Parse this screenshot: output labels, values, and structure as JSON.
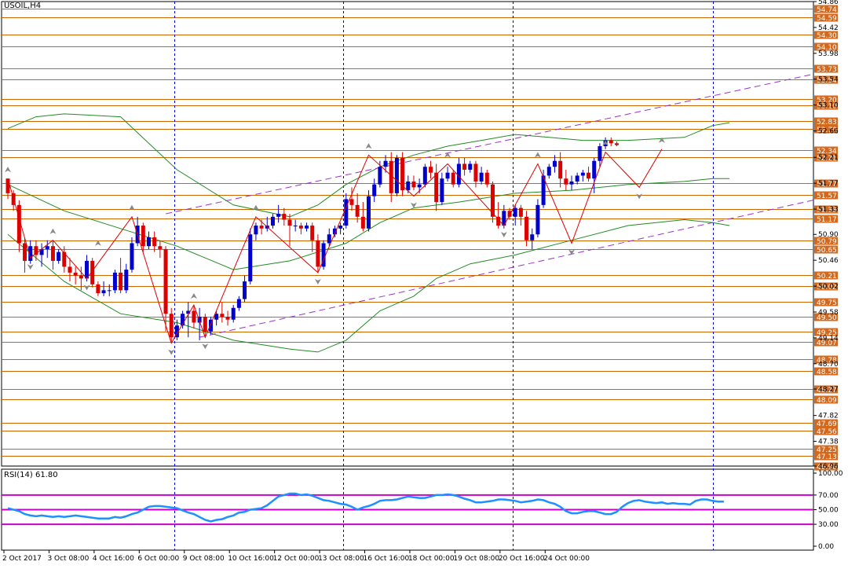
{
  "symbol_label": "USOIL,H4",
  "rsi_label": "RSI(14) 61.80",
  "colors": {
    "background": "#ffffff",
    "grid_v": "#0000cc",
    "level_line": "#cc6600",
    "level_label_bg": "#d2691e",
    "bull_candle": "#0000cc",
    "bear_candle": "#dd0000",
    "zigzag": "#dd0000",
    "bands": "#228b22",
    "channel": "#9933cc",
    "rsi_line": "#1e90ff",
    "rsi_levels": "#cc00cc",
    "arrow": "#888888"
  },
  "chart_data": [
    {
      "type": "candlestick",
      "name": "price",
      "ylim": [
        46.96,
        54.86
      ],
      "y_ticks": [
        "54.86",
        "54.42",
        "53.98",
        "53.54",
        "53.10",
        "52.66",
        "52.21",
        "51.77",
        "51.33",
        "50.90",
        "50.46",
        "50.02",
        "49.58",
        "49.14",
        "48.70",
        "48.27",
        "47.82",
        "47.38",
        "46.96"
      ],
      "levels": [
        "54.74",
        "54.59",
        "54.30",
        "54.10",
        "53.73",
        "53.54",
        "53.20",
        "53.10",
        "52.83",
        "52.70",
        "52.34",
        "52.21",
        "51.77",
        "51.57",
        "51.33",
        "51.17",
        "50.79",
        "50.65",
        "50.21",
        "50.02",
        "49.75",
        "49.50",
        "49.25",
        "49.07",
        "48.78",
        "48.58",
        "48.27",
        "48.09",
        "47.69",
        "47.56",
        "47.25",
        "47.13",
        "46.96"
      ],
      "x_labels": [
        "2 Oct 2017",
        "3 Oct 08:00",
        "4 Oct 16:00",
        "6 Oct 00:00",
        "9 Oct 08:00",
        "10 Oct 16:00",
        "12 Oct 00:00",
        "13 Oct 08:00",
        "16 Oct 16:00",
        "18 Oct 00:00",
        "19 Oct 08:00",
        "20 Oct 16:00",
        "24 Oct 00:00"
      ],
      "x_label_index": [
        0,
        8,
        16,
        24,
        32,
        40,
        48,
        56,
        64,
        72,
        80,
        88,
        96
      ],
      "v_grid_index": [
        29.5,
        59.5,
        89.5,
        125
      ],
      "ohlc": [
        [
          51.85,
          51.85,
          51.5,
          51.6
        ],
        [
          51.6,
          51.65,
          51.3,
          51.4
        ],
        [
          51.4,
          51.48,
          50.6,
          50.75
        ],
        [
          50.75,
          50.85,
          50.25,
          50.45
        ],
        [
          50.45,
          50.8,
          50.4,
          50.7
        ],
        [
          50.7,
          50.8,
          50.45,
          50.55
        ],
        [
          50.55,
          50.75,
          50.35,
          50.65
        ],
        [
          50.65,
          50.8,
          50.5,
          50.7
        ],
        [
          50.7,
          50.8,
          50.3,
          50.45
        ],
        [
          50.45,
          50.65,
          50.4,
          50.6
        ],
        [
          50.6,
          50.7,
          50.25,
          50.35
        ],
        [
          50.35,
          50.5,
          50.1,
          50.25
        ],
        [
          50.25,
          50.35,
          50.05,
          50.2
        ],
        [
          50.2,
          50.35,
          49.95,
          50.15
        ],
        [
          50.15,
          50.55,
          50.1,
          50.45
        ],
        [
          50.45,
          50.5,
          50.0,
          50.05
        ],
        [
          50.05,
          50.1,
          49.85,
          49.9
        ],
        [
          49.9,
          50.1,
          49.85,
          49.95
        ],
        [
          49.95,
          50.05,
          49.85,
          49.95
        ],
        [
          49.95,
          50.3,
          49.9,
          50.25
        ],
        [
          50.25,
          50.5,
          49.9,
          49.95
        ],
        [
          49.95,
          50.4,
          49.9,
          50.3
        ],
        [
          50.3,
          50.85,
          50.25,
          50.75
        ],
        [
          50.75,
          51.2,
          50.7,
          51.05
        ],
        [
          51.05,
          51.1,
          50.6,
          50.7
        ],
        [
          50.7,
          50.95,
          50.65,
          50.85
        ],
        [
          50.85,
          50.95,
          50.6,
          50.7
        ],
        [
          50.7,
          50.8,
          50.5,
          50.65
        ],
        [
          50.65,
          50.7,
          49.25,
          49.55
        ],
        [
          49.55,
          49.65,
          49.05,
          49.15
        ],
        [
          49.15,
          49.45,
          49.1,
          49.35
        ],
        [
          49.35,
          49.6,
          49.3,
          49.55
        ],
        [
          49.55,
          49.75,
          49.15,
          49.6
        ],
        [
          49.6,
          49.7,
          49.3,
          49.4
        ],
        [
          49.4,
          49.65,
          49.1,
          49.5
        ],
        [
          49.5,
          49.55,
          49.15,
          49.25
        ],
        [
          49.25,
          49.5,
          49.2,
          49.45
        ],
        [
          49.45,
          49.6,
          49.35,
          49.55
        ],
        [
          49.55,
          49.75,
          49.4,
          49.5
        ],
        [
          49.5,
          49.6,
          49.35,
          49.45
        ],
        [
          49.45,
          49.7,
          49.4,
          49.65
        ],
        [
          49.65,
          49.85,
          49.6,
          49.8
        ],
        [
          49.8,
          50.2,
          49.75,
          50.1
        ],
        [
          50.1,
          51.0,
          50.05,
          50.9
        ],
        [
          50.9,
          51.1,
          50.8,
          51.05
        ],
        [
          51.05,
          51.15,
          50.9,
          51.0
        ],
        [
          51.0,
          51.2,
          50.95,
          51.05
        ],
        [
          51.05,
          51.25,
          51.0,
          51.2
        ],
        [
          51.2,
          51.4,
          51.1,
          51.25
        ],
        [
          51.25,
          51.35,
          51.05,
          51.15
        ],
        [
          51.15,
          51.25,
          50.7,
          51.05
        ],
        [
          51.05,
          51.15,
          50.95,
          51.05
        ],
        [
          51.05,
          51.1,
          50.9,
          51.0
        ],
        [
          51.0,
          51.1,
          50.95,
          51.05
        ],
        [
          51.05,
          51.1,
          50.6,
          50.8
        ],
        [
          50.8,
          50.9,
          50.25,
          50.35
        ],
        [
          50.35,
          50.8,
          50.3,
          50.75
        ],
        [
          50.75,
          51.0,
          50.7,
          50.9
        ],
        [
          50.9,
          51.05,
          50.85,
          51.0
        ],
        [
          51.0,
          51.1,
          50.9,
          51.05
        ],
        [
          51.05,
          51.6,
          51.0,
          51.5
        ],
        [
          51.5,
          51.7,
          51.3,
          51.4
        ],
        [
          51.4,
          51.6,
          51.1,
          51.2
        ],
        [
          51.2,
          51.45,
          50.95,
          51.0
        ],
        [
          51.0,
          51.65,
          50.95,
          51.55
        ],
        [
          51.55,
          51.85,
          51.45,
          51.75
        ],
        [
          51.75,
          52.15,
          51.7,
          52.05
        ],
        [
          52.05,
          52.25,
          51.95,
          52.15
        ],
        [
          52.15,
          52.3,
          51.45,
          51.6
        ],
        [
          51.6,
          52.25,
          51.55,
          52.2
        ],
        [
          52.2,
          52.3,
          51.55,
          51.65
        ],
        [
          51.65,
          51.9,
          51.6,
          51.8
        ],
        [
          51.8,
          51.9,
          51.65,
          51.7
        ],
        [
          51.7,
          51.85,
          51.6,
          51.75
        ],
        [
          51.75,
          52.1,
          51.7,
          52.05
        ],
        [
          52.05,
          52.15,
          51.85,
          51.95
        ],
        [
          51.95,
          52.1,
          51.3,
          51.45
        ],
        [
          51.45,
          51.95,
          51.4,
          51.85
        ],
        [
          51.85,
          52.05,
          51.8,
          51.95
        ],
        [
          51.95,
          52.0,
          51.7,
          51.75
        ],
        [
          51.75,
          52.2,
          51.7,
          52.1
        ],
        [
          52.1,
          52.2,
          51.9,
          52.0
        ],
        [
          52.0,
          52.15,
          51.95,
          52.1
        ],
        [
          52.1,
          52.15,
          51.7,
          51.8
        ],
        [
          51.8,
          52.05,
          51.75,
          51.95
        ],
        [
          51.95,
          52.0,
          51.7,
          51.75
        ],
        [
          51.75,
          51.8,
          51.1,
          51.2
        ],
        [
          51.2,
          51.45,
          51.0,
          51.05
        ],
        [
          51.05,
          51.4,
          51.0,
          51.3
        ],
        [
          51.3,
          51.35,
          51.15,
          51.2
        ],
        [
          51.2,
          51.4,
          51.05,
          51.35
        ],
        [
          51.35,
          51.4,
          51.05,
          51.2
        ],
        [
          51.2,
          51.3,
          50.7,
          50.8
        ],
        [
          50.8,
          51.0,
          50.65,
          50.9
        ],
        [
          50.9,
          51.5,
          50.85,
          51.4
        ],
        [
          51.4,
          52.0,
          51.35,
          51.9
        ],
        [
          51.9,
          52.1,
          51.85,
          52.05
        ],
        [
          52.05,
          52.25,
          51.95,
          52.15
        ],
        [
          52.15,
          52.3,
          51.7,
          51.85
        ],
        [
          51.85,
          52.0,
          51.65,
          51.75
        ],
        [
          51.75,
          51.9,
          51.65,
          51.8
        ],
        [
          51.8,
          51.95,
          51.75,
          51.9
        ],
        [
          51.9,
          52.0,
          51.8,
          51.95
        ],
        [
          51.95,
          52.05,
          51.8,
          51.85
        ],
        [
          51.85,
          52.2,
          51.6,
          52.15
        ],
        [
          52.15,
          52.45,
          52.05,
          52.4
        ],
        [
          52.4,
          52.55,
          52.35,
          52.5
        ],
        [
          52.5,
          52.55,
          52.4,
          52.45
        ],
        [
          52.45,
          52.48,
          52.4,
          52.42
        ]
      ],
      "zigzag": [
        [
          0,
          51.85
        ],
        [
          4,
          50.5
        ],
        [
          8,
          50.8
        ],
        [
          14,
          50.15
        ],
        [
          22,
          51.2
        ],
        [
          29,
          49.05
        ],
        [
          33,
          49.7
        ],
        [
          35,
          49.15
        ],
        [
          44,
          51.2
        ],
        [
          55,
          50.25
        ],
        [
          64,
          52.25
        ],
        [
          72,
          51.55
        ],
        [
          78,
          52.1
        ],
        [
          88,
          51.05
        ],
        [
          94,
          52.1
        ],
        [
          100,
          50.75
        ],
        [
          106,
          52.3
        ],
        [
          112,
          51.7
        ],
        [
          116,
          52.35
        ]
      ],
      "upper_band": [
        [
          0,
          52.7
        ],
        [
          5,
          52.9
        ],
        [
          10,
          52.95
        ],
        [
          20,
          52.9
        ],
        [
          30,
          52.0
        ],
        [
          40,
          51.4
        ],
        [
          50,
          51.2
        ],
        [
          55,
          51.4
        ],
        [
          60,
          51.75
        ],
        [
          66,
          52.05
        ],
        [
          72,
          52.25
        ],
        [
          78,
          52.4
        ],
        [
          84,
          52.5
        ],
        [
          90,
          52.6
        ],
        [
          96,
          52.55
        ],
        [
          102,
          52.5
        ],
        [
          110,
          52.5
        ],
        [
          120,
          52.55
        ],
        [
          125,
          52.75
        ],
        [
          128,
          52.8
        ]
      ],
      "middle_band": [
        [
          0,
          51.75
        ],
        [
          10,
          51.3
        ],
        [
          20,
          51.0
        ],
        [
          30,
          50.7
        ],
        [
          40,
          50.3
        ],
        [
          50,
          50.45
        ],
        [
          60,
          50.75
        ],
        [
          66,
          51.1
        ],
        [
          72,
          51.35
        ],
        [
          80,
          51.45
        ],
        [
          90,
          51.6
        ],
        [
          100,
          51.65
        ],
        [
          110,
          51.75
        ],
        [
          120,
          51.8
        ],
        [
          125,
          51.85
        ],
        [
          128,
          51.85
        ]
      ],
      "lower_band": [
        [
          0,
          50.9
        ],
        [
          10,
          50.1
        ],
        [
          20,
          49.55
        ],
        [
          30,
          49.4
        ],
        [
          40,
          49.1
        ],
        [
          50,
          48.95
        ],
        [
          55,
          48.9
        ],
        [
          60,
          49.1
        ],
        [
          66,
          49.6
        ],
        [
          72,
          49.85
        ],
        [
          76,
          50.15
        ],
        [
          82,
          50.4
        ],
        [
          90,
          50.55
        ],
        [
          100,
          50.8
        ],
        [
          110,
          51.05
        ],
        [
          120,
          51.15
        ],
        [
          125,
          51.1
        ],
        [
          128,
          51.05
        ]
      ],
      "channel_upper": [
        [
          28,
          51.25
        ],
        [
          160,
          53.98
        ]
      ],
      "channel_lower": [
        [
          34,
          49.15
        ],
        [
          160,
          51.85
        ]
      ],
      "arrows_up": [
        [
          0,
          51.85
        ],
        [
          8,
          50.8
        ],
        [
          16,
          50.6
        ],
        [
          22,
          51.2
        ],
        [
          33,
          49.7
        ],
        [
          44,
          51.2
        ],
        [
          64,
          52.25
        ],
        [
          78,
          52.1
        ],
        [
          94,
          52.1
        ],
        [
          106,
          52.3
        ],
        [
          116,
          52.35
        ]
      ],
      "arrows_down": [
        [
          4,
          50.5
        ],
        [
          14,
          50.15
        ],
        [
          29,
          49.05
        ],
        [
          35,
          49.15
        ],
        [
          55,
          50.25
        ],
        [
          72,
          51.55
        ],
        [
          88,
          51.05
        ],
        [
          100,
          50.75
        ],
        [
          112,
          51.7
        ]
      ]
    },
    {
      "type": "line",
      "name": "RSI(14)",
      "ylim": [
        0,
        100
      ],
      "y_ticks": [
        "100.00",
        "70.00",
        "50.00",
        "30.00",
        "0.00"
      ],
      "levels": [
        70,
        50,
        30
      ],
      "values": [
        52,
        50,
        48,
        44,
        42,
        41,
        42,
        41,
        40,
        41,
        40,
        41,
        42,
        41,
        40,
        39,
        38,
        38,
        38,
        40,
        39,
        41,
        44,
        46,
        50,
        54,
        55,
        55,
        54,
        53,
        52,
        49,
        46,
        44,
        40,
        36,
        34,
        36,
        37,
        40,
        42,
        46,
        47,
        50,
        51,
        52,
        56,
        62,
        68,
        70,
        72,
        72,
        70,
        71,
        69,
        66,
        63,
        62,
        60,
        58,
        57,
        54,
        50,
        53,
        55,
        58,
        62,
        63,
        63,
        64,
        66,
        68,
        67,
        66,
        66,
        68,
        70,
        70,
        71,
        70,
        68,
        65,
        63,
        60,
        60,
        61,
        62,
        64,
        64,
        63,
        62,
        60,
        61,
        62,
        64,
        63,
        60,
        58,
        54,
        48,
        45,
        45,
        47,
        48,
        48,
        46,
        44,
        44,
        47,
        54,
        59,
        62,
        63,
        61,
        60,
        59,
        60,
        58,
        59,
        58,
        58,
        57,
        62,
        64,
        64,
        62,
        61,
        61
      ]
    }
  ]
}
